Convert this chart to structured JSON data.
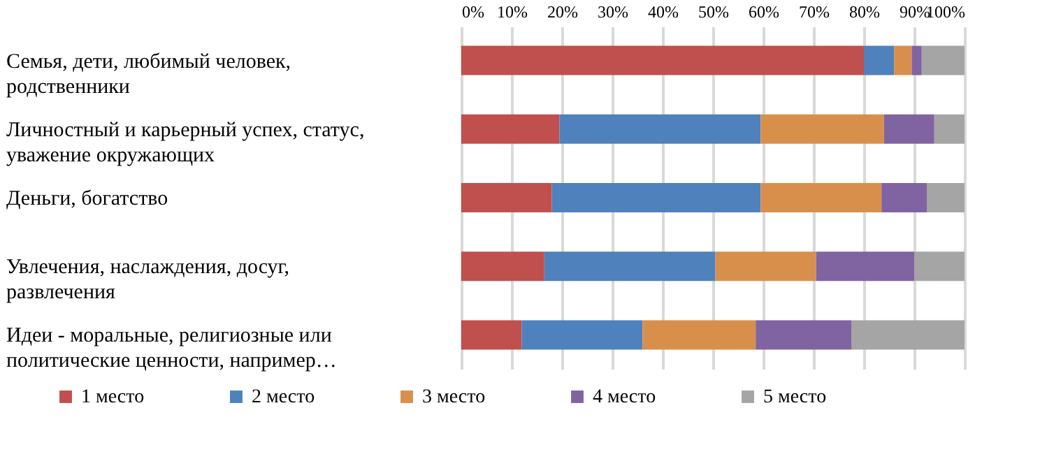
{
  "chart_data": {
    "type": "bar",
    "orientation": "horizontal",
    "stacked": true,
    "categories": [
      "Семья, дети, любимый человек, родственники",
      "Личностный и карьерный успех, статус, уважение окружающих",
      "Деньги, богатство",
      "Увлечения, наслаждения, досуг, развлечения",
      "Идеи - моральные, религиозные или политические ценности, например…"
    ],
    "series": [
      {
        "name": "1 место",
        "color": "#c0504d",
        "values": [
          80,
          19.5,
          18,
          16.5,
          12
        ]
      },
      {
        "name": "2 место",
        "color": "#4f81bd",
        "values": [
          6,
          40,
          41.5,
          34,
          24
        ]
      },
      {
        "name": "3 место",
        "color": "#d98f4c",
        "values": [
          3.5,
          24.5,
          24,
          20,
          22.5
        ]
      },
      {
        "name": "4 место",
        "color": "#8064a2",
        "values": [
          2,
          10,
          9,
          19.5,
          19
        ]
      },
      {
        "name": "5 место",
        "color": "#a5a5a5",
        "values": [
          8.5,
          6,
          7.5,
          10,
          22.5
        ]
      }
    ],
    "xlim": [
      0,
      100
    ],
    "xticks": [
      {
        "value": 0,
        "label": "0%"
      },
      {
        "value": 10,
        "label": "10%"
      },
      {
        "value": 20,
        "label": "20%"
      },
      {
        "value": 30,
        "label": "30%"
      },
      {
        "value": 40,
        "label": "40%"
      },
      {
        "value": 50,
        "label": "50%"
      },
      {
        "value": 60,
        "label": "60%"
      },
      {
        "value": 70,
        "label": "70%"
      },
      {
        "value": 80,
        "label": "80%"
      },
      {
        "value": 90,
        "label": "90%"
      },
      {
        "value": 100,
        "label": "100%"
      }
    ],
    "grid": "x",
    "legend": "bottom"
  }
}
